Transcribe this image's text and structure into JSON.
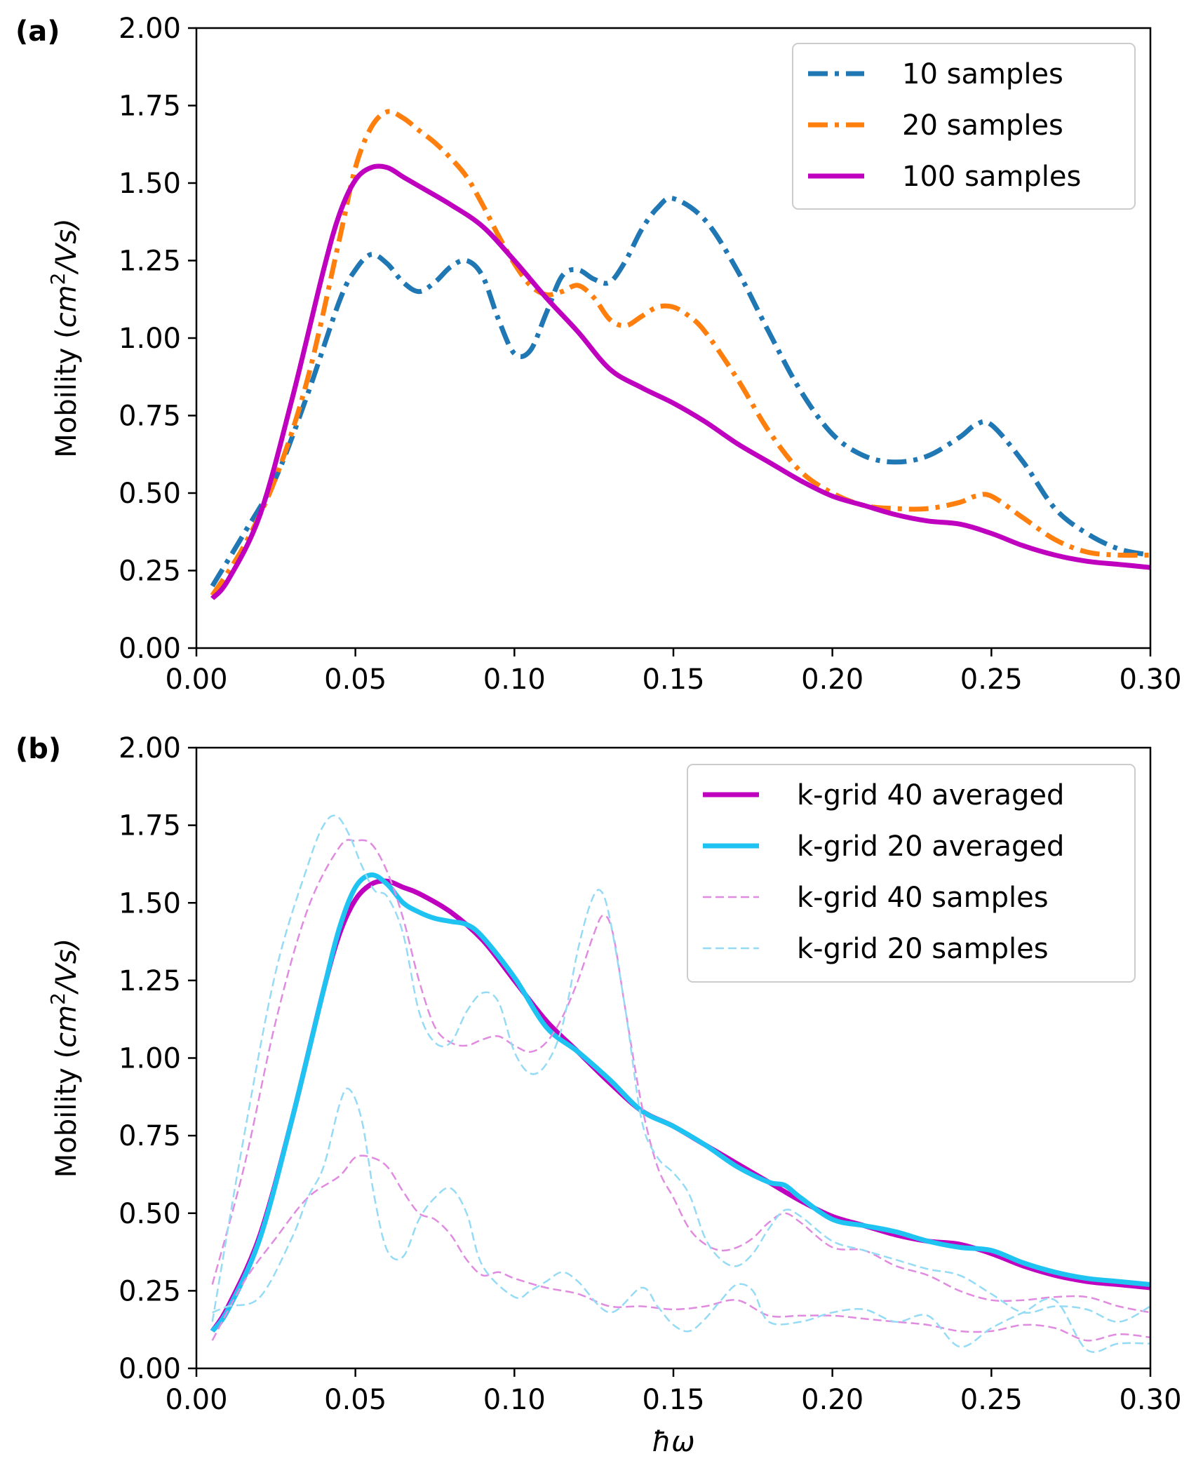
{
  "chart_data": [
    {
      "type": "line",
      "panel_label": "(a)",
      "xlabel": "",
      "ylabel_main": "Mobility (",
      "ylabel_math": "cm",
      "ylabel_sup": "2",
      "ylabel_tail": "/Vs)",
      "ylabel_close": ")",
      "xlim": [
        0.0,
        0.3
      ],
      "ylim": [
        0.0,
        2.0
      ],
      "xticks": [
        "0.00",
        "0.05",
        "0.10",
        "0.15",
        "0.20",
        "0.25",
        "0.30"
      ],
      "xtick_values": [
        0.0,
        0.05,
        0.1,
        0.15,
        0.2,
        0.25,
        0.3
      ],
      "yticks": [
        "0.00",
        "0.25",
        "0.50",
        "0.75",
        "1.00",
        "1.25",
        "1.50",
        "1.75",
        "2.00"
      ],
      "ytick_values": [
        0.0,
        0.25,
        0.5,
        0.75,
        1.0,
        1.25,
        1.5,
        1.75,
        2.0
      ],
      "legend_position": "top-right",
      "series": [
        {
          "name": "10 samples",
          "color": "#1f77b4",
          "style": "dashdot",
          "width": "thick",
          "x": [
            0.005,
            0.015,
            0.025,
            0.035,
            0.045,
            0.05,
            0.055,
            0.06,
            0.065,
            0.07,
            0.075,
            0.08,
            0.085,
            0.09,
            0.095,
            0.1,
            0.105,
            0.11,
            0.115,
            0.12,
            0.125,
            0.13,
            0.135,
            0.14,
            0.145,
            0.15,
            0.16,
            0.17,
            0.18,
            0.19,
            0.2,
            0.21,
            0.22,
            0.23,
            0.24,
            0.245,
            0.25,
            0.26,
            0.27,
            0.28,
            0.29,
            0.3
          ],
          "y": [
            0.2,
            0.37,
            0.55,
            0.82,
            1.12,
            1.22,
            1.27,
            1.24,
            1.18,
            1.15,
            1.18,
            1.23,
            1.25,
            1.2,
            1.06,
            0.95,
            0.96,
            1.08,
            1.2,
            1.22,
            1.19,
            1.18,
            1.25,
            1.35,
            1.42,
            1.45,
            1.38,
            1.22,
            1.02,
            0.83,
            0.69,
            0.62,
            0.6,
            0.62,
            0.68,
            0.72,
            0.72,
            0.6,
            0.45,
            0.37,
            0.32,
            0.3
          ]
        },
        {
          "name": "20 samples",
          "color": "#ff7f0e",
          "style": "dashdot",
          "width": "thick",
          "x": [
            0.005,
            0.015,
            0.025,
            0.035,
            0.045,
            0.05,
            0.055,
            0.06,
            0.065,
            0.07,
            0.075,
            0.08,
            0.085,
            0.09,
            0.095,
            0.1,
            0.105,
            0.11,
            0.115,
            0.12,
            0.125,
            0.13,
            0.135,
            0.14,
            0.145,
            0.15,
            0.155,
            0.16,
            0.17,
            0.18,
            0.19,
            0.2,
            0.21,
            0.22,
            0.23,
            0.24,
            0.245,
            0.25,
            0.26,
            0.27,
            0.28,
            0.29,
            0.3
          ],
          "y": [
            0.17,
            0.33,
            0.55,
            0.87,
            1.32,
            1.55,
            1.68,
            1.73,
            1.71,
            1.67,
            1.63,
            1.58,
            1.52,
            1.43,
            1.33,
            1.24,
            1.17,
            1.14,
            1.15,
            1.17,
            1.13,
            1.06,
            1.04,
            1.07,
            1.1,
            1.1,
            1.07,
            1.02,
            0.87,
            0.7,
            0.57,
            0.5,
            0.46,
            0.45,
            0.45,
            0.47,
            0.49,
            0.49,
            0.42,
            0.35,
            0.31,
            0.3,
            0.3
          ]
        },
        {
          "name": "100 samples",
          "color": "#bf00bf",
          "style": "solid",
          "width": "thick",
          "x": [
            0.005,
            0.01,
            0.02,
            0.03,
            0.04,
            0.045,
            0.05,
            0.055,
            0.06,
            0.065,
            0.07,
            0.08,
            0.09,
            0.1,
            0.11,
            0.12,
            0.13,
            0.14,
            0.15,
            0.16,
            0.17,
            0.18,
            0.19,
            0.2,
            0.21,
            0.22,
            0.23,
            0.24,
            0.25,
            0.26,
            0.27,
            0.28,
            0.29,
            0.3
          ],
          "y": [
            0.16,
            0.22,
            0.43,
            0.8,
            1.22,
            1.4,
            1.51,
            1.55,
            1.55,
            1.52,
            1.49,
            1.43,
            1.36,
            1.25,
            1.13,
            1.02,
            0.9,
            0.84,
            0.79,
            0.73,
            0.66,
            0.6,
            0.54,
            0.49,
            0.46,
            0.43,
            0.41,
            0.4,
            0.37,
            0.33,
            0.3,
            0.28,
            0.27,
            0.26
          ]
        }
      ]
    },
    {
      "type": "line",
      "panel_label": "(b)",
      "xlabel": "ħω",
      "ylabel_main": "Mobility (",
      "ylabel_math": "cm",
      "ylabel_sup": "2",
      "ylabel_tail": "/Vs)",
      "ylabel_close": ")",
      "xlim": [
        0.0,
        0.3
      ],
      "ylim": [
        0.0,
        2.0
      ],
      "xticks": [
        "0.00",
        "0.05",
        "0.10",
        "0.15",
        "0.20",
        "0.25",
        "0.30"
      ],
      "xtick_values": [
        0.0,
        0.05,
        0.1,
        0.15,
        0.2,
        0.25,
        0.3
      ],
      "yticks": [
        "0.00",
        "0.25",
        "0.50",
        "0.75",
        "1.00",
        "1.25",
        "1.50",
        "1.75",
        "2.00"
      ],
      "ytick_values": [
        0.0,
        0.25,
        0.5,
        0.75,
        1.0,
        1.25,
        1.5,
        1.75,
        2.0
      ],
      "legend_position": "top-right",
      "series": [
        {
          "name": "k-grid 40 averaged",
          "color": "#bf00bf",
          "style": "solid",
          "width": "thick",
          "legend": true,
          "x": [
            0.005,
            0.01,
            0.02,
            0.03,
            0.04,
            0.045,
            0.05,
            0.055,
            0.06,
            0.065,
            0.07,
            0.08,
            0.09,
            0.1,
            0.11,
            0.12,
            0.13,
            0.14,
            0.15,
            0.16,
            0.17,
            0.18,
            0.19,
            0.2,
            0.21,
            0.22,
            0.23,
            0.24,
            0.25,
            0.26,
            0.27,
            0.28,
            0.29,
            0.3
          ],
          "y": [
            0.12,
            0.2,
            0.43,
            0.8,
            1.22,
            1.4,
            1.51,
            1.56,
            1.57,
            1.55,
            1.53,
            1.47,
            1.38,
            1.25,
            1.12,
            1.02,
            0.92,
            0.83,
            0.78,
            0.72,
            0.66,
            0.6,
            0.54,
            0.49,
            0.46,
            0.43,
            0.41,
            0.4,
            0.37,
            0.33,
            0.3,
            0.28,
            0.27,
            0.26
          ]
        },
        {
          "name": "k-grid 20 averaged",
          "color": "#1fc3f2",
          "style": "solid",
          "width": "thick",
          "legend": true,
          "x": [
            0.005,
            0.01,
            0.02,
            0.03,
            0.04,
            0.045,
            0.05,
            0.055,
            0.06,
            0.065,
            0.07,
            0.075,
            0.08,
            0.085,
            0.09,
            0.1,
            0.11,
            0.12,
            0.13,
            0.14,
            0.15,
            0.16,
            0.17,
            0.18,
            0.185,
            0.19,
            0.2,
            0.21,
            0.22,
            0.23,
            0.24,
            0.25,
            0.26,
            0.27,
            0.28,
            0.29,
            0.3
          ],
          "y": [
            0.12,
            0.19,
            0.42,
            0.8,
            1.22,
            1.42,
            1.55,
            1.59,
            1.56,
            1.5,
            1.47,
            1.45,
            1.44,
            1.43,
            1.39,
            1.26,
            1.1,
            1.02,
            0.93,
            0.83,
            0.78,
            0.72,
            0.65,
            0.6,
            0.59,
            0.55,
            0.48,
            0.46,
            0.44,
            0.41,
            0.39,
            0.38,
            0.34,
            0.31,
            0.29,
            0.28,
            0.27
          ]
        },
        {
          "name": "k-grid 40 samples",
          "color": "#e08be0",
          "style": "dashed",
          "width": "thin",
          "legend": true,
          "x": [
            0.005,
            0.015,
            0.025,
            0.035,
            0.045,
            0.05,
            0.055,
            0.06,
            0.065,
            0.07,
            0.075,
            0.08,
            0.085,
            0.09,
            0.095,
            0.1,
            0.105,
            0.11,
            0.115,
            0.12,
            0.125,
            0.128,
            0.131,
            0.135,
            0.14,
            0.145,
            0.15,
            0.155,
            0.16,
            0.165,
            0.17,
            0.175,
            0.18,
            0.185,
            0.19,
            0.2,
            0.21,
            0.22,
            0.23,
            0.24,
            0.25,
            0.26,
            0.27,
            0.28,
            0.29,
            0.3
          ],
          "y": [
            0.27,
            0.65,
            1.12,
            1.48,
            1.68,
            1.7,
            1.69,
            1.6,
            1.45,
            1.25,
            1.1,
            1.05,
            1.04,
            1.06,
            1.07,
            1.04,
            1.02,
            1.05,
            1.13,
            1.25,
            1.4,
            1.46,
            1.4,
            1.15,
            0.85,
            0.65,
            0.55,
            0.45,
            0.4,
            0.38,
            0.39,
            0.42,
            0.47,
            0.5,
            0.47,
            0.39,
            0.38,
            0.33,
            0.3,
            0.25,
            0.22,
            0.22,
            0.23,
            0.23,
            0.2,
            0.18
          ]
        },
        {
          "name": "k-grid 40 samples (low)",
          "color": "#e08be0",
          "style": "dashed",
          "width": "thin",
          "legend": false,
          "x": [
            0.005,
            0.015,
            0.025,
            0.035,
            0.045,
            0.05,
            0.055,
            0.06,
            0.065,
            0.07,
            0.075,
            0.08,
            0.085,
            0.09,
            0.095,
            0.1,
            0.11,
            0.12,
            0.13,
            0.14,
            0.15,
            0.16,
            0.17,
            0.18,
            0.19,
            0.2,
            0.21,
            0.22,
            0.23,
            0.24,
            0.25,
            0.26,
            0.27,
            0.28,
            0.29,
            0.3
          ],
          "y": [
            0.09,
            0.28,
            0.42,
            0.55,
            0.62,
            0.68,
            0.68,
            0.65,
            0.57,
            0.5,
            0.48,
            0.43,
            0.35,
            0.3,
            0.31,
            0.29,
            0.26,
            0.24,
            0.2,
            0.2,
            0.19,
            0.2,
            0.22,
            0.17,
            0.17,
            0.17,
            0.16,
            0.15,
            0.14,
            0.12,
            0.12,
            0.14,
            0.13,
            0.09,
            0.11,
            0.1
          ]
        },
        {
          "name": "k-grid 20 samples",
          "color": "#95dbf5",
          "style": "dashed",
          "width": "thin",
          "legend": true,
          "x": [
            0.005,
            0.015,
            0.025,
            0.035,
            0.04,
            0.044,
            0.048,
            0.052,
            0.056,
            0.06,
            0.065,
            0.07,
            0.075,
            0.08,
            0.085,
            0.09,
            0.095,
            0.1,
            0.105,
            0.11,
            0.115,
            0.12,
            0.124,
            0.127,
            0.13,
            0.135,
            0.14,
            0.145,
            0.15,
            0.155,
            0.16,
            0.165,
            0.17,
            0.175,
            0.18,
            0.185,
            0.19,
            0.2,
            0.21,
            0.22,
            0.23,
            0.24,
            0.25,
            0.26,
            0.27,
            0.28,
            0.29,
            0.3
          ],
          "y": [
            0.15,
            0.75,
            1.28,
            1.62,
            1.75,
            1.78,
            1.72,
            1.62,
            1.54,
            1.52,
            1.4,
            1.15,
            1.05,
            1.05,
            1.15,
            1.21,
            1.18,
            1.02,
            0.95,
            0.98,
            1.1,
            1.35,
            1.5,
            1.54,
            1.45,
            1.15,
            0.8,
            0.68,
            0.63,
            0.56,
            0.42,
            0.35,
            0.33,
            0.37,
            0.45,
            0.51,
            0.49,
            0.41,
            0.38,
            0.35,
            0.32,
            0.3,
            0.24,
            0.18,
            0.2,
            0.19,
            0.15,
            0.2
          ]
        },
        {
          "name": "k-grid 20 samples (low)",
          "color": "#95dbf5",
          "style": "dashed",
          "width": "thin",
          "legend": false,
          "x": [
            0.005,
            0.01,
            0.02,
            0.03,
            0.035,
            0.04,
            0.045,
            0.048,
            0.052,
            0.056,
            0.06,
            0.065,
            0.07,
            0.075,
            0.08,
            0.085,
            0.09,
            0.1,
            0.105,
            0.11,
            0.115,
            0.12,
            0.13,
            0.14,
            0.145,
            0.15,
            0.155,
            0.16,
            0.165,
            0.17,
            0.175,
            0.18,
            0.19,
            0.2,
            0.21,
            0.22,
            0.23,
            0.24,
            0.25,
            0.26,
            0.27,
            0.28,
            0.29,
            0.3
          ],
          "y": [
            0.18,
            0.2,
            0.23,
            0.42,
            0.55,
            0.65,
            0.85,
            0.9,
            0.8,
            0.55,
            0.38,
            0.36,
            0.48,
            0.55,
            0.58,
            0.5,
            0.33,
            0.23,
            0.25,
            0.28,
            0.31,
            0.28,
            0.18,
            0.26,
            0.2,
            0.14,
            0.12,
            0.16,
            0.22,
            0.27,
            0.25,
            0.15,
            0.15,
            0.18,
            0.19,
            0.15,
            0.17,
            0.07,
            0.13,
            0.18,
            0.22,
            0.06,
            0.08,
            0.08
          ]
        }
      ]
    }
  ]
}
